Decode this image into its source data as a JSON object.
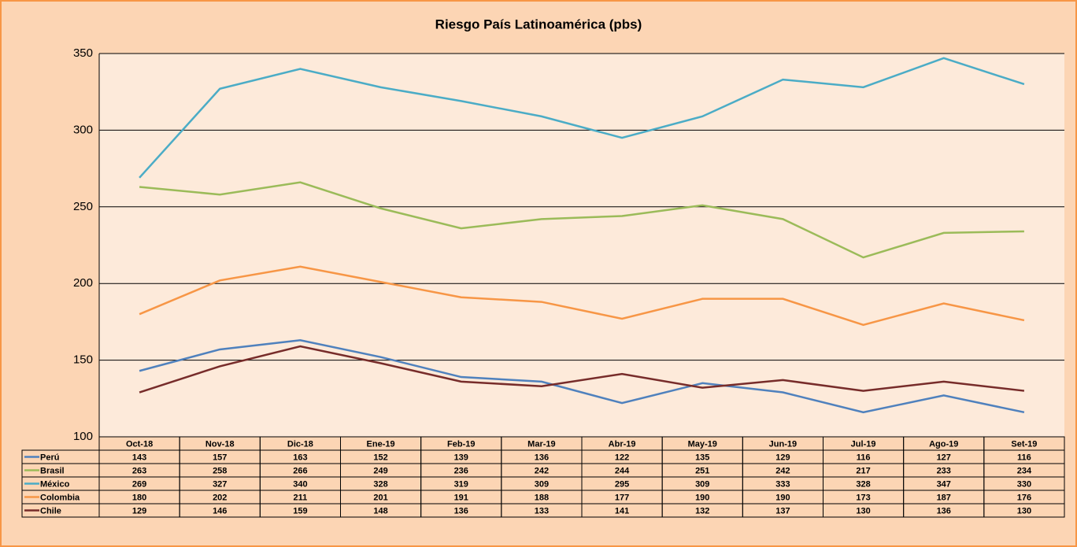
{
  "chart_data": {
    "type": "line",
    "title": "Riesgo País Latinoamérica (pbs)",
    "categories": [
      "Oct-18",
      "Nov-18",
      "Dic-18",
      "Ene-19",
      "Feb-19",
      "Mar-19",
      "Abr-19",
      "May-19",
      "Jun-19",
      "Jul-19",
      "Ago-19",
      "Set-19"
    ],
    "series": [
      {
        "name": "Perú",
        "color": "#4f81bd",
        "values": [
          143,
          157,
          163,
          152,
          139,
          136,
          122,
          135,
          129,
          116,
          127,
          116
        ]
      },
      {
        "name": "Brasil",
        "color": "#9bbb59",
        "values": [
          263,
          258,
          266,
          249,
          236,
          242,
          244,
          251,
          242,
          217,
          233,
          234
        ]
      },
      {
        "name": "México",
        "color": "#4bacc6",
        "values": [
          269,
          327,
          340,
          328,
          319,
          309,
          295,
          309,
          333,
          328,
          347,
          330
        ]
      },
      {
        "name": "Colombia",
        "color": "#f79646",
        "values": [
          180,
          202,
          211,
          201,
          191,
          188,
          177,
          190,
          190,
          173,
          187,
          176
        ]
      },
      {
        "name": "Chile",
        "color": "#772c2a",
        "values": [
          129,
          146,
          159,
          148,
          136,
          133,
          141,
          132,
          137,
          130,
          136,
          130
        ]
      }
    ],
    "ylim": [
      100,
      350
    ],
    "yticks": [
      100,
      150,
      200,
      250,
      300,
      350
    ],
    "grid": true
  }
}
